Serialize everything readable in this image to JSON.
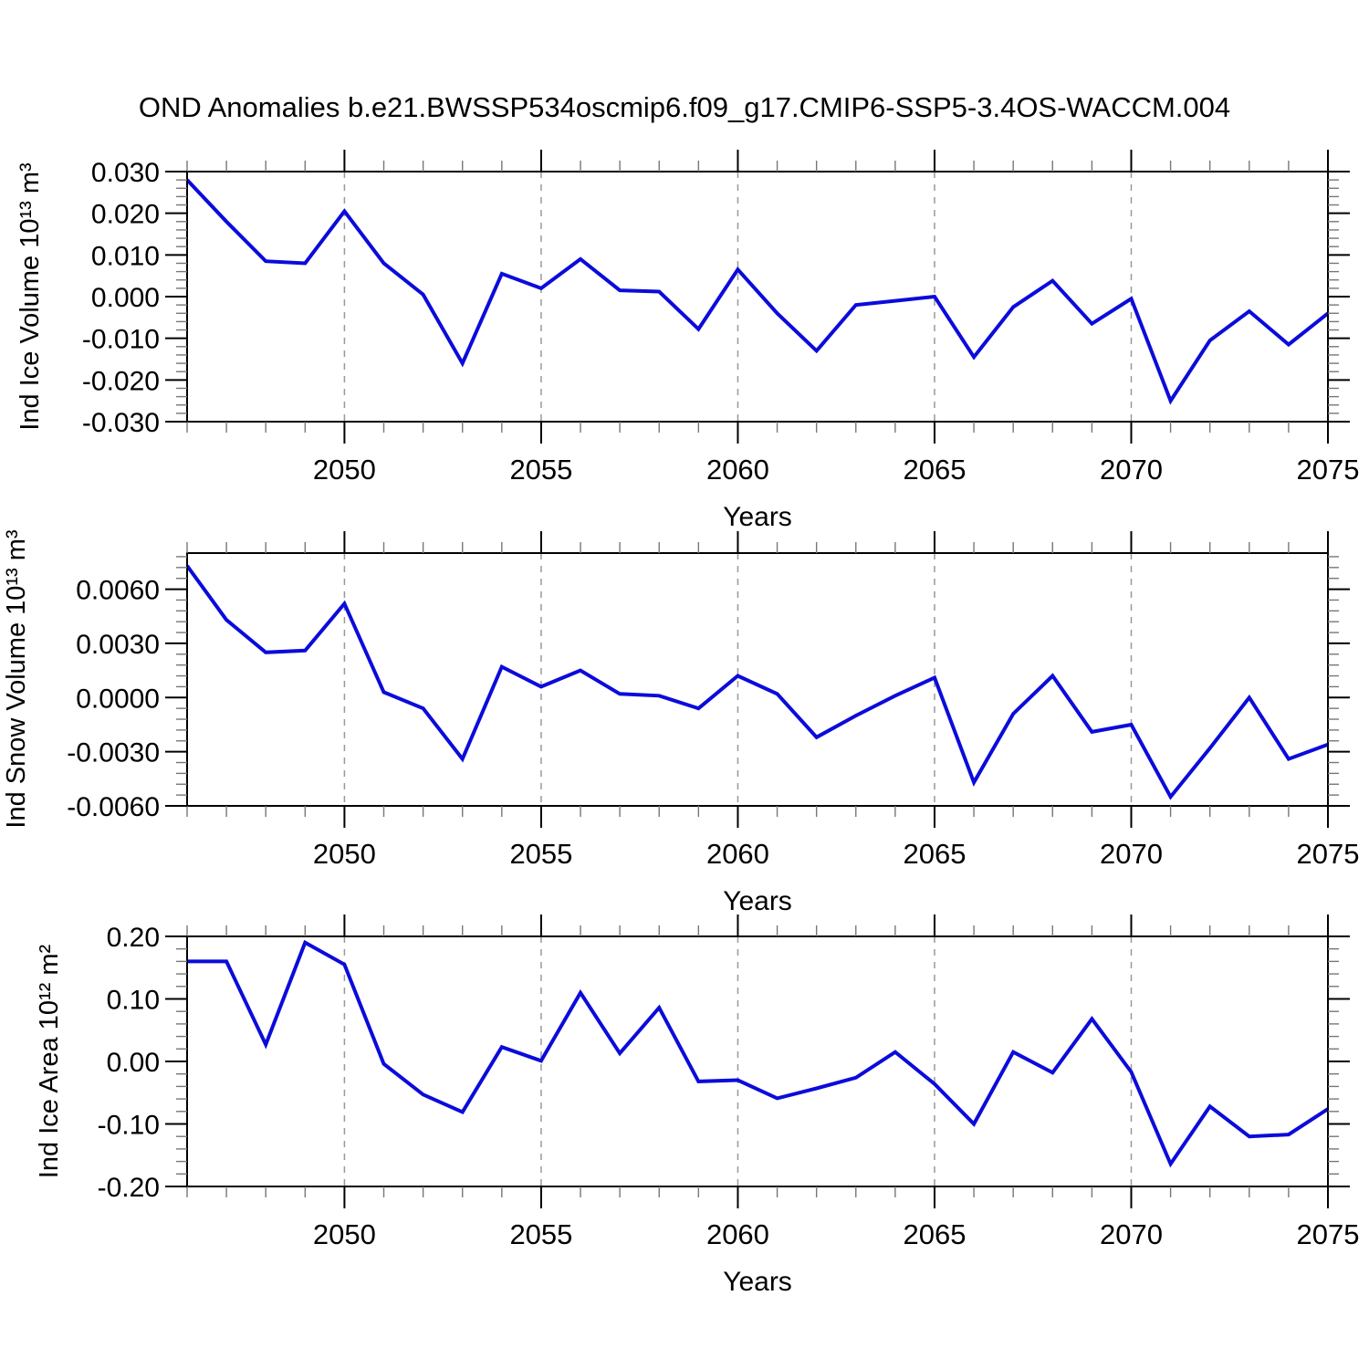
{
  "title": "OND Anomalies b.e21.BWSSP534oscmip6.f09_g17.CMIP6-SSP5-3.4OS-WACCM.004",
  "line_color": "#0b0bdb",
  "grid_color": "#999999",
  "tick_minor_color": "#777777",
  "axis_color": "#000000",
  "chart_data": [
    {
      "type": "line",
      "ylabel": "Ind Ice Volume 10¹³ m³",
      "xlabel": "Years",
      "x": [
        2046,
        2047,
        2048,
        2049,
        2050,
        2051,
        2052,
        2053,
        2054,
        2055,
        2056,
        2057,
        2058,
        2059,
        2060,
        2061,
        2062,
        2063,
        2064,
        2065,
        2066,
        2067,
        2068,
        2069,
        2070,
        2071,
        2072,
        2073,
        2074,
        2075
      ],
      "values": [
        0.028,
        0.018,
        0.0085,
        0.008,
        0.0205,
        0.008,
        0.0005,
        -0.016,
        0.0055,
        0.002,
        0.009,
        0.0015,
        0.0012,
        -0.0078,
        0.0065,
        -0.004,
        -0.013,
        -0.002,
        -0.001,
        0.0,
        -0.0145,
        -0.0025,
        0.0038,
        -0.0065,
        -0.0005,
        -0.025,
        -0.0105,
        -0.0035,
        -0.0115,
        -0.004
      ],
      "xlim": [
        2046,
        2075
      ],
      "ylim": [
        -0.03,
        0.03
      ],
      "ytick_values": [
        0.03,
        0.02,
        0.01,
        0,
        -0.01,
        -0.02,
        -0.03
      ],
      "ytick_labels": [
        "0.030",
        "0.020",
        "0.010",
        "0.000",
        "-0.010",
        "-0.020",
        "-0.030"
      ],
      "yminor_step": 0.002,
      "xtick_values": [
        2050,
        2055,
        2060,
        2065,
        2070,
        2075
      ],
      "xtick_labels": [
        "2050",
        "2055",
        "2060",
        "2065",
        "2070",
        "2075"
      ],
      "xminor_step": 1,
      "grid_years": [
        2050,
        2055,
        2060,
        2065,
        2070
      ],
      "grid_on": true,
      "legend": "none"
    },
    {
      "type": "line",
      "ylabel": "Ind Snow Volume 10¹³ m³",
      "xlabel": "Years",
      "x": [
        2046,
        2047,
        2048,
        2049,
        2050,
        2051,
        2052,
        2053,
        2054,
        2055,
        2056,
        2057,
        2058,
        2059,
        2060,
        2061,
        2062,
        2063,
        2064,
        2065,
        2066,
        2067,
        2068,
        2069,
        2070,
        2071,
        2072,
        2073,
        2074,
        2075
      ],
      "values": [
        0.0073,
        0.0043,
        0.0025,
        0.0026,
        0.0052,
        0.0003,
        -0.0006,
        -0.0034,
        0.0017,
        0.0006,
        0.0015,
        0.0002,
        0.0001,
        -0.0006,
        0.0012,
        0.0002,
        -0.0022,
        -0.001,
        0.0001,
        0.0011,
        -0.0047,
        -0.0009,
        0.0012,
        -0.0019,
        -0.0015,
        -0.0055,
        -0.0028,
        0.0,
        -0.0034,
        -0.0026
      ],
      "xlim": [
        2046,
        2075
      ],
      "ylim": [
        -0.006,
        0.008
      ],
      "ytick_values": [
        0.006,
        0.003,
        0,
        -0.003,
        -0.006
      ],
      "ytick_labels": [
        "0.0060",
        "0.0030",
        "0.0000",
        "-0.0030",
        "-0.0060"
      ],
      "yminor_step": 0.0006,
      "xtick_values": [
        2050,
        2055,
        2060,
        2065,
        2070,
        2075
      ],
      "xtick_labels": [
        "2050",
        "2055",
        "2060",
        "2065",
        "2070",
        "2075"
      ],
      "xminor_step": 1,
      "grid_years": [
        2050,
        2055,
        2060,
        2065,
        2070
      ],
      "grid_on": true,
      "legend": "none"
    },
    {
      "type": "line",
      "ylabel": "Ind Ice Area 10¹² m²",
      "xlabel": "Years",
      "x": [
        2046,
        2047,
        2048,
        2049,
        2050,
        2051,
        2052,
        2053,
        2054,
        2055,
        2056,
        2057,
        2058,
        2059,
        2060,
        2061,
        2062,
        2063,
        2064,
        2065,
        2066,
        2067,
        2068,
        2069,
        2070,
        2071,
        2072,
        2073,
        2074,
        2075
      ],
      "values": [
        0.16,
        0.16,
        0.027,
        0.19,
        0.155,
        -0.004,
        -0.053,
        -0.081,
        0.023,
        0.001,
        0.11,
        0.013,
        0.086,
        -0.032,
        -0.03,
        -0.059,
        -0.043,
        -0.026,
        0.015,
        -0.036,
        -0.1,
        0.015,
        -0.018,
        0.068,
        -0.017,
        -0.164,
        -0.072,
        -0.12,
        -0.117,
        -0.076
      ],
      "xlim": [
        2046,
        2075
      ],
      "ylim": [
        -0.2,
        0.2
      ],
      "ytick_values": [
        0.2,
        0.1,
        0,
        -0.1,
        -0.2
      ],
      "ytick_labels": [
        "0.20",
        "0.10",
        "0.00",
        "-0.10",
        "-0.20"
      ],
      "yminor_step": 0.02,
      "xtick_values": [
        2050,
        2055,
        2060,
        2065,
        2070,
        2075
      ],
      "xtick_labels": [
        "2050",
        "2055",
        "2060",
        "2065",
        "2070",
        "2075"
      ],
      "xminor_step": 1,
      "grid_years": [
        2050,
        2055,
        2060,
        2065,
        2070
      ],
      "grid_on": true,
      "legend": "none"
    }
  ]
}
